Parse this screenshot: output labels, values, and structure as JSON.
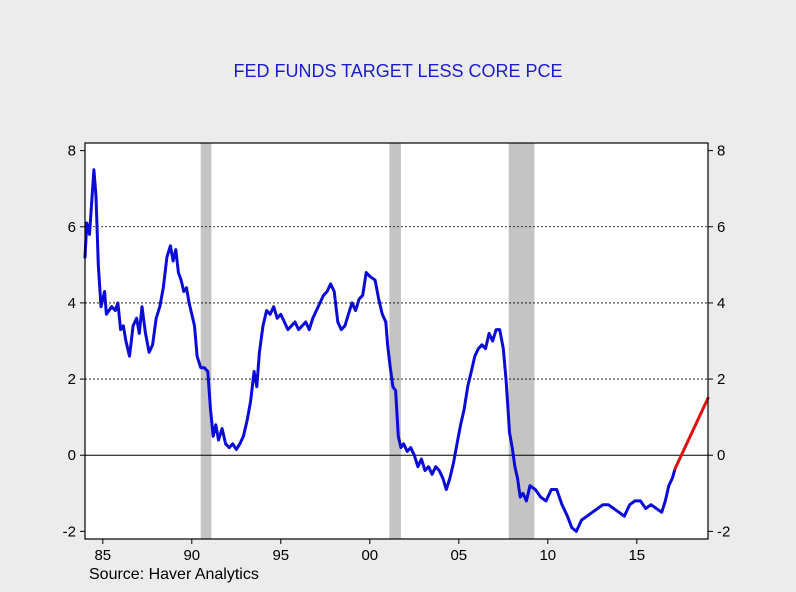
{
  "chart_data": {
    "type": "line",
    "title": "FED FUNDS TARGET LESS CORE PCE",
    "source": "Source: Haver Analytics",
    "xlim": [
      1984.0,
      2019.0
    ],
    "ylim": [
      -2.2,
      8.2
    ],
    "x_tick_values": [
      1985,
      1990,
      1995,
      2000,
      2005,
      2010,
      2015
    ],
    "x_tick_labels": [
      "85",
      "90",
      "95",
      "00",
      "05",
      "10",
      "15"
    ],
    "y_ticks": [
      -2,
      0,
      2,
      4,
      6,
      8
    ],
    "gridlines_y": [
      2,
      4,
      6
    ],
    "zero_line": true,
    "recessions": [
      [
        1990.5,
        1991.1
      ],
      [
        2001.1,
        2001.75
      ],
      [
        2007.8,
        2009.25
      ]
    ],
    "colors": {
      "series": "#0b0bd9",
      "projection": "#e01010",
      "recession": "#c4c4c4",
      "title": "#1c1ccf"
    },
    "series": [
      {
        "values": [
          [
            1984.0,
            5.2
          ],
          [
            1984.1,
            6.1
          ],
          [
            1984.25,
            5.8
          ],
          [
            1984.4,
            6.8
          ],
          [
            1984.5,
            7.5
          ],
          [
            1984.62,
            6.8
          ],
          [
            1984.75,
            5.0
          ],
          [
            1984.9,
            3.9
          ],
          [
            1985.0,
            4.1
          ],
          [
            1985.1,
            4.3
          ],
          [
            1985.2,
            3.7
          ],
          [
            1985.35,
            3.8
          ],
          [
            1985.5,
            3.9
          ],
          [
            1985.7,
            3.8
          ],
          [
            1985.85,
            4.0
          ],
          [
            1986.0,
            3.3
          ],
          [
            1986.15,
            3.4
          ],
          [
            1986.3,
            3.0
          ],
          [
            1986.5,
            2.6
          ],
          [
            1986.7,
            3.4
          ],
          [
            1986.9,
            3.6
          ],
          [
            1987.05,
            3.2
          ],
          [
            1987.2,
            3.9
          ],
          [
            1987.4,
            3.2
          ],
          [
            1987.6,
            2.7
          ],
          [
            1987.8,
            2.9
          ],
          [
            1988.0,
            3.6
          ],
          [
            1988.2,
            3.9
          ],
          [
            1988.4,
            4.4
          ],
          [
            1988.6,
            5.2
          ],
          [
            1988.8,
            5.5
          ],
          [
            1988.95,
            5.1
          ],
          [
            1989.1,
            5.4
          ],
          [
            1989.25,
            4.8
          ],
          [
            1989.4,
            4.6
          ],
          [
            1989.55,
            4.3
          ],
          [
            1989.7,
            4.4
          ],
          [
            1989.85,
            4.0
          ],
          [
            1990.0,
            3.7
          ],
          [
            1990.15,
            3.4
          ],
          [
            1990.3,
            2.6
          ],
          [
            1990.5,
            2.3
          ],
          [
            1990.7,
            2.3
          ],
          [
            1990.9,
            2.2
          ],
          [
            1991.05,
            1.2
          ],
          [
            1991.2,
            0.5
          ],
          [
            1991.35,
            0.8
          ],
          [
            1991.5,
            0.4
          ],
          [
            1991.7,
            0.7
          ],
          [
            1991.9,
            0.3
          ],
          [
            1992.1,
            0.2
          ],
          [
            1992.3,
            0.3
          ],
          [
            1992.5,
            0.15
          ],
          [
            1992.7,
            0.3
          ],
          [
            1992.9,
            0.5
          ],
          [
            1993.1,
            0.9
          ],
          [
            1993.3,
            1.4
          ],
          [
            1993.5,
            2.2
          ],
          [
            1993.65,
            1.8
          ],
          [
            1993.8,
            2.7
          ],
          [
            1994.0,
            3.4
          ],
          [
            1994.2,
            3.8
          ],
          [
            1994.4,
            3.7
          ],
          [
            1994.6,
            3.9
          ],
          [
            1994.8,
            3.6
          ],
          [
            1995.0,
            3.7
          ],
          [
            1995.2,
            3.5
          ],
          [
            1995.4,
            3.3
          ],
          [
            1995.6,
            3.4
          ],
          [
            1995.8,
            3.5
          ],
          [
            1996.0,
            3.3
          ],
          [
            1996.2,
            3.4
          ],
          [
            1996.4,
            3.5
          ],
          [
            1996.6,
            3.3
          ],
          [
            1996.8,
            3.6
          ],
          [
            1997.0,
            3.8
          ],
          [
            1997.2,
            4.0
          ],
          [
            1997.4,
            4.2
          ],
          [
            1997.6,
            4.3
          ],
          [
            1997.8,
            4.5
          ],
          [
            1998.0,
            4.3
          ],
          [
            1998.2,
            3.5
          ],
          [
            1998.4,
            3.3
          ],
          [
            1998.6,
            3.4
          ],
          [
            1998.8,
            3.7
          ],
          [
            1999.0,
            4.0
          ],
          [
            1999.2,
            3.8
          ],
          [
            1999.4,
            4.1
          ],
          [
            1999.6,
            4.2
          ],
          [
            1999.8,
            4.8
          ],
          [
            2000.0,
            4.7
          ],
          [
            2000.3,
            4.6
          ],
          [
            2000.5,
            4.1
          ],
          [
            2000.7,
            3.7
          ],
          [
            2000.9,
            3.5
          ],
          [
            2001.0,
            2.9
          ],
          [
            2001.15,
            2.3
          ],
          [
            2001.3,
            1.8
          ],
          [
            2001.45,
            1.7
          ],
          [
            2001.6,
            0.5
          ],
          [
            2001.75,
            0.2
          ],
          [
            2001.9,
            0.3
          ],
          [
            2002.1,
            0.1
          ],
          [
            2002.3,
            0.2
          ],
          [
            2002.5,
            0.0
          ],
          [
            2002.7,
            -0.3
          ],
          [
            2002.9,
            -0.1
          ],
          [
            2003.1,
            -0.4
          ],
          [
            2003.3,
            -0.3
          ],
          [
            2003.5,
            -0.5
          ],
          [
            2003.7,
            -0.3
          ],
          [
            2003.9,
            -0.4
          ],
          [
            2004.1,
            -0.6
          ],
          [
            2004.3,
            -0.9
          ],
          [
            2004.5,
            -0.6
          ],
          [
            2004.7,
            -0.2
          ],
          [
            2004.9,
            0.3
          ],
          [
            2005.1,
            0.8
          ],
          [
            2005.3,
            1.2
          ],
          [
            2005.5,
            1.8
          ],
          [
            2005.7,
            2.2
          ],
          [
            2005.9,
            2.6
          ],
          [
            2006.1,
            2.8
          ],
          [
            2006.3,
            2.9
          ],
          [
            2006.5,
            2.8
          ],
          [
            2006.7,
            3.2
          ],
          [
            2006.9,
            3.0
          ],
          [
            2007.1,
            3.3
          ],
          [
            2007.3,
            3.3
          ],
          [
            2007.5,
            2.8
          ],
          [
            2007.65,
            2.0
          ],
          [
            2007.75,
            1.3
          ],
          [
            2007.85,
            0.6
          ],
          [
            2008.0,
            0.2
          ],
          [
            2008.15,
            -0.3
          ],
          [
            2008.3,
            -0.6
          ],
          [
            2008.45,
            -1.1
          ],
          [
            2008.6,
            -1.0
          ],
          [
            2008.8,
            -1.2
          ],
          [
            2009.0,
            -0.8
          ],
          [
            2009.3,
            -0.9
          ],
          [
            2009.6,
            -1.1
          ],
          [
            2009.9,
            -1.2
          ],
          [
            2010.2,
            -0.9
          ],
          [
            2010.5,
            -0.9
          ],
          [
            2010.8,
            -1.3
          ],
          [
            2011.1,
            -1.6
          ],
          [
            2011.35,
            -1.9
          ],
          [
            2011.6,
            -2.0
          ],
          [
            2011.9,
            -1.7
          ],
          [
            2012.2,
            -1.6
          ],
          [
            2012.5,
            -1.5
          ],
          [
            2012.8,
            -1.4
          ],
          [
            2013.1,
            -1.3
          ],
          [
            2013.4,
            -1.3
          ],
          [
            2013.7,
            -1.4
          ],
          [
            2014.0,
            -1.5
          ],
          [
            2014.3,
            -1.6
          ],
          [
            2014.6,
            -1.3
          ],
          [
            2014.9,
            -1.2
          ],
          [
            2015.2,
            -1.2
          ],
          [
            2015.5,
            -1.4
          ],
          [
            2015.8,
            -1.3
          ],
          [
            2016.1,
            -1.4
          ],
          [
            2016.4,
            -1.5
          ],
          [
            2016.6,
            -1.2
          ],
          [
            2016.8,
            -0.8
          ],
          [
            2017.0,
            -0.6
          ],
          [
            2017.15,
            -0.35
          ]
        ]
      },
      {
        "values": [
          [
            2017.15,
            -0.35
          ],
          [
            2019.0,
            1.5
          ]
        ]
      }
    ]
  }
}
